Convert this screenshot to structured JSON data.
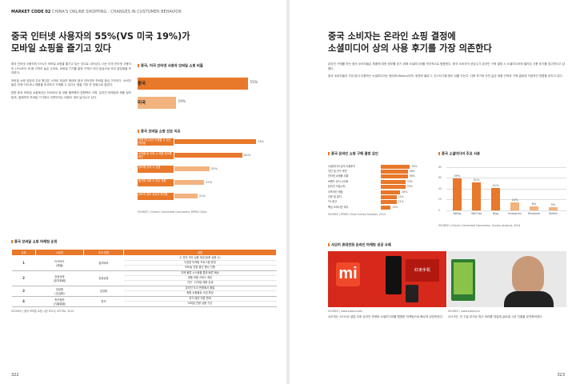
{
  "running_head": {
    "code": "MARKET CODE 02",
    "title": "CHINA'S ONLINE SHOPPING : CHANGES IN CUSTOMER BEHAVIOR"
  },
  "left": {
    "headline": [
      "중국 인터넷 사용자의 55%(VS 미국 19%)가",
      "모바일 쇼핑을 즐기고 있다"
    ],
    "body": [
      "중국 인터넷 사용자의 55%가 모바일 쇼핑을 즐기고 있는 것으로 나타났다. 이는 미국 인터넷 사용자의 19%보다 세 배 가까이 높은 수치로, 모바일 기기를 통한 구매가 이미 일상으로 자리 잡았음을 보여준다.",
      "모바일 쇼핑 성장의 주요 원인은 스마트 보급의 확대와 중국 인터넷의 모바일 중심 구조이다. 소비자들은 언제 어디서나 제품을 비교하고 구매할 수 있다는 점을 가장 큰 장점으로 꼽았다.",
      "한편 중국 모바일 쇼핑에서는 타오바오 등 대형 플랫폼의 영향력이 크며, 온라인 마케팅과 제품 정보 탐색, 결제까지 모바일 기기에서 이루어지는 비중이 계속 늘어나고 있다."
    ],
    "chart1": {
      "title": "중국, 미국 인터넷 사용자 모바일 쇼핑 비율"
    },
    "chart2": {
      "title": "중국 모바일 쇼핑 선호 이유"
    },
    "source1": "SOURCE | China's Connected Consumers, KPMG China",
    "table_title": "중국 모바일 쇼핑 마케팅 순위",
    "table": {
      "headers": [
        "순위",
        "소분류",
        "주요 업체",
        "내용"
      ],
      "rows": [
        {
          "rank": "1",
          "name": [
            "타오바오",
            "(淘宝)"
          ],
          "company": "알리바바",
          "desc": [
            "수 천만 개의 상품 제공(등록 상품 수)",
            "다양한 마케팅 프로그램 운영",
            "모바일 전용 할인 행사 진행"
          ]
        },
        {
          "rank": "2",
          "name": [
            "징동상청",
            "(京东商城)"
          ],
          "company": "징동상청",
          "desc": [
            "자체 물류 시스템을 통한 빠른 배송",
            "정품 보증 서비스 제공",
            "가전 · 디지털 제품 강세"
          ]
        },
        {
          "rank": "3",
          "name": [
            "당당왕",
            "(当当网)"
          ],
          "company": "당당왕",
          "desc": [
            "온라인 도서 판매에서 출발",
            "종합 쇼핑몰로 사업 확장"
          ]
        },
        {
          "rank": "4",
          "name": [
            "판커청핀",
            "(凡客诚品)"
          ],
          "company": "판커",
          "desc": [
            "저가 패션 의류 판매",
            "모바일 전용 상품 구성"
          ]
        }
      ]
    },
    "source2": "SOURCE | 중국 모바일 쇼핑 시장 보고서, KOTRA, 2014",
    "folio": "322"
  },
  "right": {
    "headline": [
      "중국 소비자는 온라인 쇼핑 결정에",
      "소셜미디어 상의 사용 후기를 가장 의존한다"
    ],
    "body": [
      "온라인 구매를 하는 중국 소비자들은 제품에 대한 정보를 얻기 위해 소셜미디어를 적극적으로 활용한다. 중국 소비자의 상당수가 온라인 구매 결정 시 소셜미디어에 올라온 사용 후기를 참고한다고 답했다.",
      "중국 소비자들이 가장 많이 이용하는 소셜미디어는 웨이보(Weibo)이며, 위챗과 블로그, 인스타그램 등이 뒤를 잇는다. 사용 후기와 추천 글은 제품 선택과 구매 결정에 직접적인 영향을 미치고 있다."
    ],
    "chart3": {
      "title": "중국 온라인 쇼핑 구매 결정 요인"
    },
    "chart4": {
      "title": "중국 소셜미디어 주요 사용",
      "yticks": [
        "80",
        "60",
        "40",
        "20",
        "0"
      ]
    },
    "source3": "SOURCE | KPMG China Survey Analysis, 2014",
    "source4": "SOURCE | China's Connected Consumers, Survey Analysis, 2014",
    "photo_title": "샤오미 휴대전화 온라인 마케팅 성공 사례",
    "photo_caption_left": "SOURCE | www.xiaomi.com",
    "photo_caption_right": "SOURCE | www.xiaomi.cn",
    "mi_logo": "mi",
    "red_box_text": "红米手机",
    "captions": [
      "샤오미는 2010년 설립 이후 온라인 판매와 소셜미디어를 활용한 마케팅으로 빠르게 성장하였다.",
      "2013년, 전 구글 부사장 휴고 바라를 영입해 글로벌 시장 진출을 본격화하였다."
    ],
    "folio": "323"
  },
  "chart_data": [
    {
      "type": "bar",
      "title": "중국, 미국 인터넷 사용자 모바일 쇼핑 비율",
      "categories": [
        "중국",
        "미국"
      ],
      "values": [
        55,
        19
      ],
      "value_labels": [
        "55%",
        "19%"
      ],
      "ylim": [
        0,
        60
      ]
    },
    {
      "type": "bar",
      "title": "중국 모바일 쇼핑 선호 이유",
      "categories": [
        "언제 어디서든 이용할 수 있는 편리함",
        "쇼핑몰 등 이용 시 제품 정보를 확인",
        "정보를 쉽게 수 있음",
        "즐거운 쇼핑 수 있는 경험",
        "정보의 정보 공유의 편리함"
      ],
      "values": [
        74,
        62,
        32,
        27,
        21
      ],
      "value_labels": [
        "74%",
        "62%",
        "32%",
        "27%",
        "21%"
      ],
      "ylim": [
        0,
        80
      ]
    },
    {
      "type": "bar",
      "title": "중국 온라인 쇼핑 구매 결정 요인",
      "categories": [
        "소셜미디어 상의 사용후기",
        "지인 및 친구 추천",
        "인터넷 쇼핑몰 리뷰",
        "브랜드 공식 사이트",
        "온라인 커뮤니티",
        "오프라인 매장",
        "신문 및 잡지",
        "TV 광고",
        "핵심 오피니언 리더"
      ],
      "values": [
        39,
        36,
        36,
        33,
        33,
        26,
        21,
        21,
        13
      ],
      "value_labels": [
        "39%",
        "36%",
        "36%",
        "33%",
        "33%",
        "26%",
        "21%",
        "21%",
        "13%"
      ],
      "ylim": [
        0,
        45
      ]
    },
    {
      "type": "bar",
      "title": "중국 소셜미디어 주요 사용",
      "categories": [
        "Weibo",
        "WeChat",
        "Blog",
        "Instagram",
        "Facebook",
        "Twitter"
      ],
      "values": [
        59,
        51,
        41,
        14,
        6,
        5
      ],
      "value_labels": [
        "59%",
        "51%",
        "41%",
        "14%",
        "6%",
        "5%"
      ],
      "ylim": [
        0,
        80
      ]
    }
  ],
  "colors": {
    "accent": "#e8782a",
    "accent_light": "#f2b37e",
    "xiaomi_red": "#d7281c"
  }
}
